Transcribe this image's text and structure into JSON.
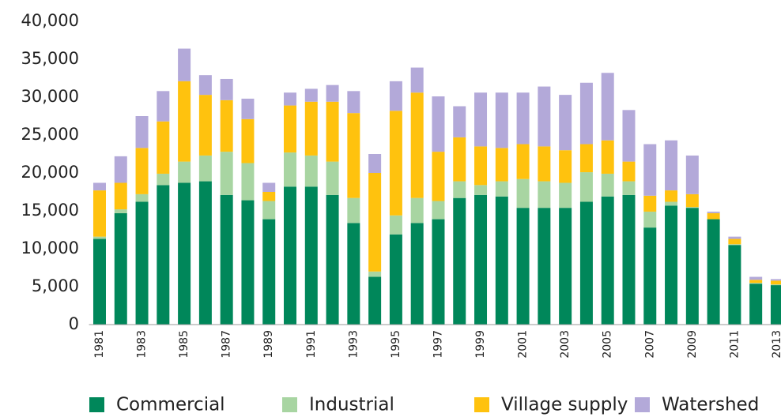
{
  "chart_data": {
    "type": "stacked_bar",
    "categories": [
      "1981",
      null,
      "1983",
      null,
      "1985",
      null,
      "1987",
      null,
      "1989",
      null,
      "1991",
      null,
      "1993",
      null,
      "1995",
      null,
      "1997",
      null,
      "1999",
      null,
      "2001",
      null,
      "2003",
      null,
      "2005",
      null,
      "2007",
      null,
      "2009",
      null,
      "2011",
      null,
      "2013"
    ],
    "series": [
      {
        "name": "Commercial",
        "color": "#00875a",
        "values": [
          11300,
          14700,
          16200,
          18400,
          18700,
          18900,
          17100,
          16400,
          13900,
          18200,
          18200,
          17100,
          13400,
          6300,
          11900,
          13400,
          13900,
          16700,
          17100,
          16900,
          15400,
          15400,
          15400,
          16200,
          16900,
          17100,
          12800,
          15700,
          15400,
          13900,
          10500,
          5400,
          5200
        ]
      },
      {
        "name": "Industrial",
        "color": "#a8d5a2",
        "values": [
          300,
          500,
          1000,
          1500,
          2800,
          3400,
          5700,
          4900,
          2400,
          4500,
          4100,
          4400,
          3300,
          700,
          2500,
          3300,
          2400,
          2200,
          1300,
          2000,
          3800,
          3500,
          3300,
          3900,
          3000,
          1800,
          2100,
          500,
          100,
          0,
          100,
          100,
          100
        ]
      },
      {
        "name": "Village supply",
        "color": "#ffc20e",
        "values": [
          6100,
          3500,
          6100,
          6900,
          10600,
          8000,
          6800,
          5800,
          1200,
          6200,
          7100,
          7900,
          11200,
          13000,
          13800,
          13900,
          6500,
          5800,
          5100,
          4400,
          4600,
          4600,
          4300,
          3700,
          4400,
          2600,
          2100,
          1500,
          1700,
          800,
          700,
          400,
          500
        ]
      },
      {
        "name": "Watershed",
        "color": "#b3a9d9",
        "values": [
          1000,
          3500,
          4200,
          4000,
          4300,
          2600,
          2800,
          2700,
          1200,
          1700,
          1700,
          2200,
          2900,
          2500,
          3900,
          3300,
          7300,
          4100,
          7100,
          7300,
          6800,
          7900,
          7300,
          8100,
          8900,
          6800,
          6800,
          6600,
          5100,
          200,
          300,
          400,
          200
        ]
      }
    ],
    "ylim": [
      0,
      40000
    ],
    "yticks": [
      0,
      {
        "value": 5000,
        "label": "5,000"
      },
      {
        "value": 10000,
        "label": "10,000"
      },
      {
        "value": 15000,
        "label": "15,000"
      },
      {
        "value": 20000,
        "label": "20,000"
      },
      {
        "value": 25000,
        "label": "25,000"
      },
      {
        "value": 30000,
        "label": "30,000"
      },
      {
        "value": 35000,
        "label": "35,000"
      },
      {
        "value": 40000,
        "label": "40,000"
      }
    ],
    "grid": false,
    "legend": "bottom"
  }
}
